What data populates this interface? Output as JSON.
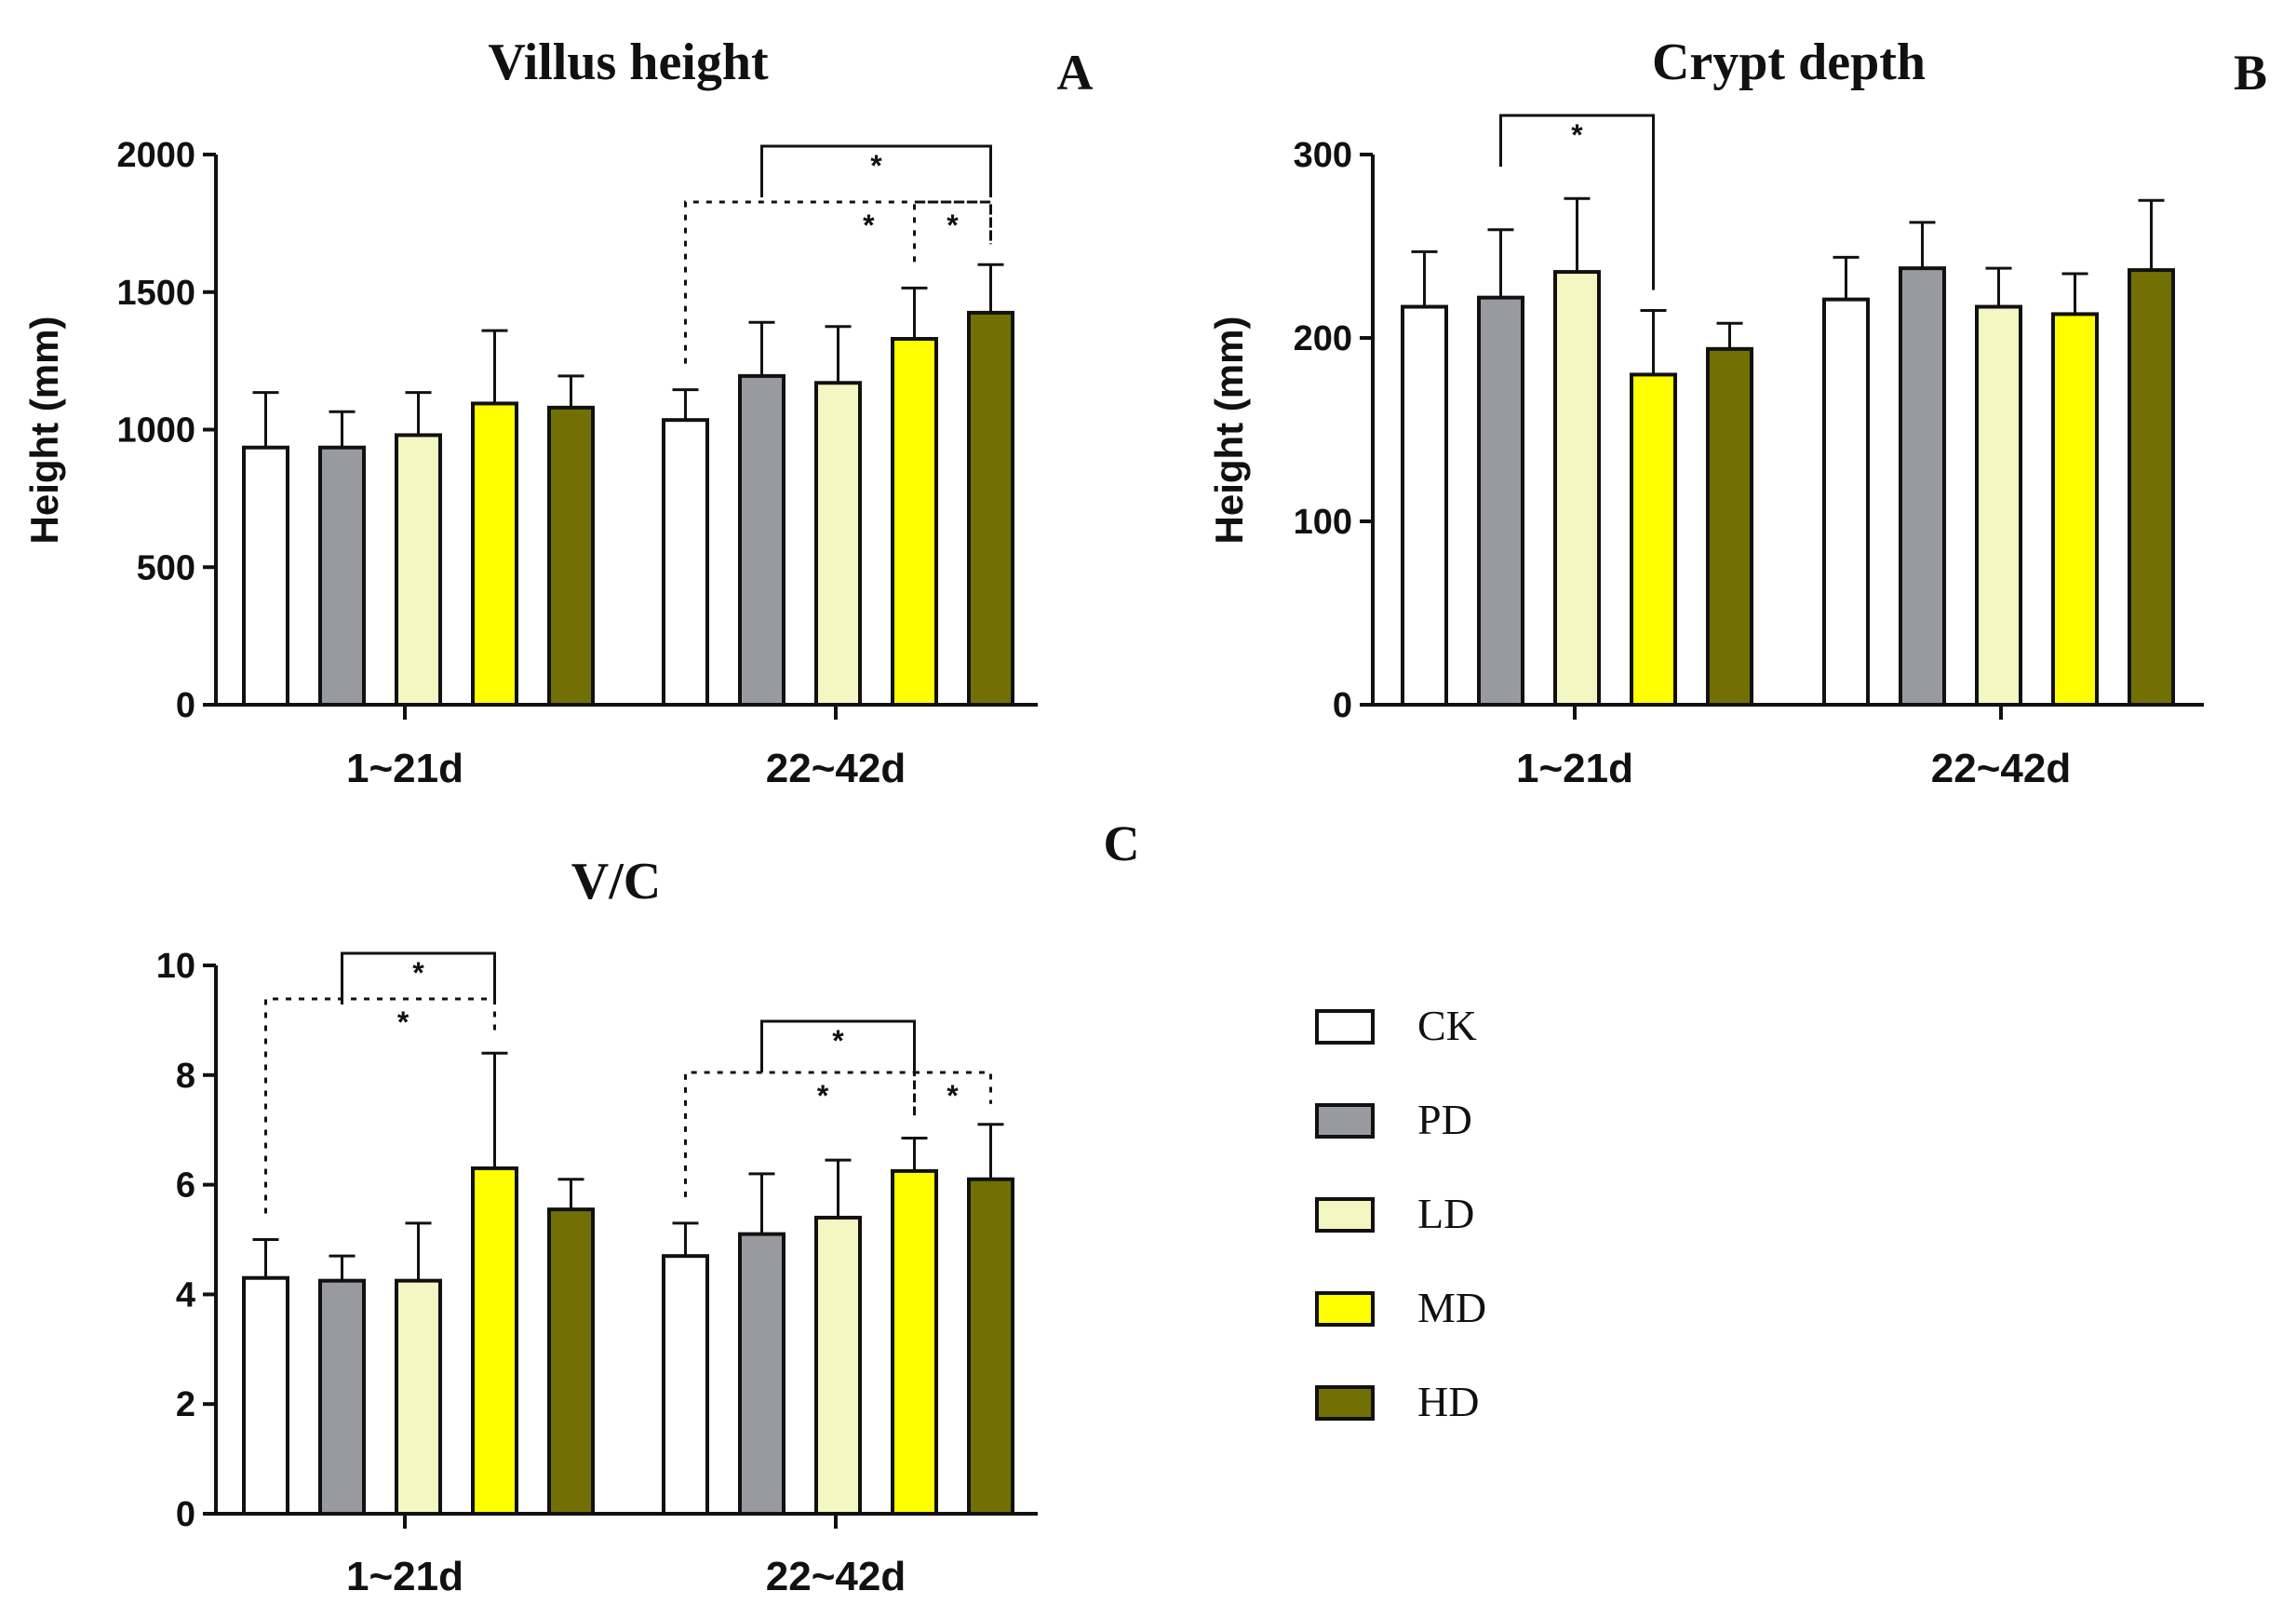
{
  "groups_legend": [
    {
      "name": "CK",
      "color": "#ffffff"
    },
    {
      "name": "PD",
      "color": "#999aa0"
    },
    {
      "name": "LD",
      "color": "#f3f7c2"
    },
    {
      "name": "MD",
      "color": "#ffff00"
    },
    {
      "name": "HD",
      "color": "#727005"
    }
  ],
  "chart_data": [
    {
      "panel": "A",
      "type": "bar",
      "title": "Villus height",
      "ylabel": "Height (mm)",
      "xlabel": "",
      "categories": [
        "1~21d",
        "22~42d"
      ],
      "ylim": [
        0,
        2000
      ],
      "yticks": [
        0,
        500,
        1000,
        1500,
        2000
      ],
      "series": [
        {
          "name": "CK",
          "values": [
            935,
            1035
          ],
          "errors": [
            200,
            110
          ]
        },
        {
          "name": "PD",
          "values": [
            935,
            1195
          ],
          "errors": [
            130,
            195
          ]
        },
        {
          "name": "LD",
          "values": [
            980,
            1170
          ],
          "errors": [
            155,
            205
          ]
        },
        {
          "name": "MD",
          "values": [
            1095,
            1330
          ],
          "errors": [
            265,
            185
          ]
        },
        {
          "name": "HD",
          "values": [
            1080,
            1425
          ],
          "errors": [
            115,
            175
          ]
        }
      ],
      "significance": [
        {
          "category": "22~42d",
          "from": "PD",
          "to": "HD",
          "label": "*",
          "style": "solid"
        },
        {
          "category": "22~42d",
          "from": "CK",
          "to": "HD",
          "label": "*",
          "style": "dashed"
        },
        {
          "category": "22~42d",
          "from": "MD",
          "to": "HD",
          "label": "*",
          "style": "dashed"
        }
      ]
    },
    {
      "panel": "B",
      "type": "bar",
      "title": "Crypt depth",
      "ylabel": "Height (mm)",
      "xlabel": "",
      "categories": [
        "1~21d",
        "22~42d"
      ],
      "ylim": [
        0,
        300
      ],
      "yticks": [
        0,
        100,
        200,
        300
      ],
      "series": [
        {
          "name": "CK",
          "values": [
            217,
            221
          ],
          "errors": [
            30,
            23
          ]
        },
        {
          "name": "PD",
          "values": [
            222,
            238
          ],
          "errors": [
            37,
            25
          ]
        },
        {
          "name": "LD",
          "values": [
            236,
            217
          ],
          "errors": [
            40,
            21
          ]
        },
        {
          "name": "MD",
          "values": [
            180,
            213
          ],
          "errors": [
            35,
            22
          ]
        },
        {
          "name": "HD",
          "values": [
            194,
            237
          ],
          "errors": [
            14,
            38
          ]
        }
      ],
      "significance": [
        {
          "category": "1~21d",
          "from": "PD",
          "to": "MD",
          "label": "*",
          "style": "solid"
        }
      ]
    },
    {
      "panel": "C",
      "type": "bar",
      "title": "V/C",
      "ylabel": "",
      "xlabel": "",
      "categories": [
        "1~21d",
        "22~42d"
      ],
      "ylim": [
        0,
        10
      ],
      "yticks": [
        0,
        2,
        4,
        6,
        8,
        10
      ],
      "series": [
        {
          "name": "CK",
          "values": [
            4.3,
            4.7
          ],
          "errors": [
            0.7,
            0.6
          ]
        },
        {
          "name": "PD",
          "values": [
            4.25,
            5.1
          ],
          "errors": [
            0.45,
            1.1
          ]
        },
        {
          "name": "LD",
          "values": [
            4.25,
            5.4
          ],
          "errors": [
            1.05,
            1.05
          ]
        },
        {
          "name": "MD",
          "values": [
            6.3,
            6.25
          ],
          "errors": [
            2.1,
            0.6
          ]
        },
        {
          "name": "HD",
          "values": [
            5.55,
            6.1
          ],
          "errors": [
            0.55,
            1.0
          ]
        }
      ],
      "significance": [
        {
          "category": "1~21d",
          "from": "PD",
          "to": "MD",
          "label": "*",
          "style": "solid"
        },
        {
          "category": "1~21d",
          "from": "CK",
          "to": "MD",
          "label": "*",
          "style": "dashed"
        },
        {
          "category": "22~42d",
          "from": "PD",
          "to": "MD",
          "label": "*",
          "style": "solid"
        },
        {
          "category": "22~42d",
          "from": "CK",
          "to": "MD",
          "label": "*",
          "style": "dashed"
        },
        {
          "category": "22~42d",
          "from": "MD",
          "to": "HD",
          "label": "*",
          "style": "dashed"
        }
      ]
    }
  ]
}
